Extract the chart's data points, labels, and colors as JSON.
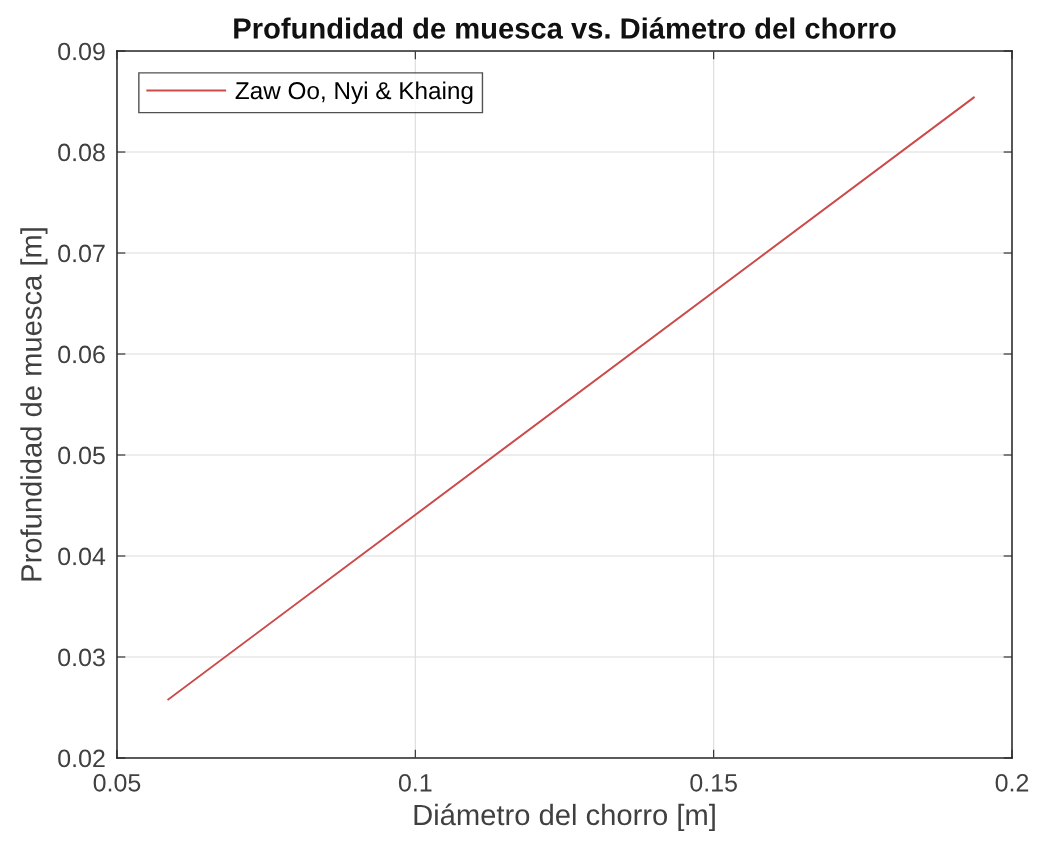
{
  "chart_data": {
    "type": "line",
    "title": "Profundidad de muesca vs. Diámetro del chorro",
    "xlabel": "Diámetro del chorro [m]",
    "ylabel": "Profundidad de muesca [m]",
    "series": [
      {
        "name": "Zaw Oo, Nyi & Khaing",
        "color": "#cc4a4a",
        "x": [
          0.0586,
          0.1936
        ],
        "values": [
          0.0258,
          0.0854
        ]
      }
    ],
    "xlim": [
      0.05,
      0.2
    ],
    "xticks": [
      0.05,
      0.1,
      0.15,
      0.2
    ],
    "ylim": [
      0.02,
      0.09
    ],
    "yticks": [
      0.02,
      0.03,
      0.04,
      0.05,
      0.06,
      0.07,
      0.08,
      0.09
    ],
    "grid": true,
    "legend": "top left",
    "marker": "none",
    "line_style": "solid"
  }
}
